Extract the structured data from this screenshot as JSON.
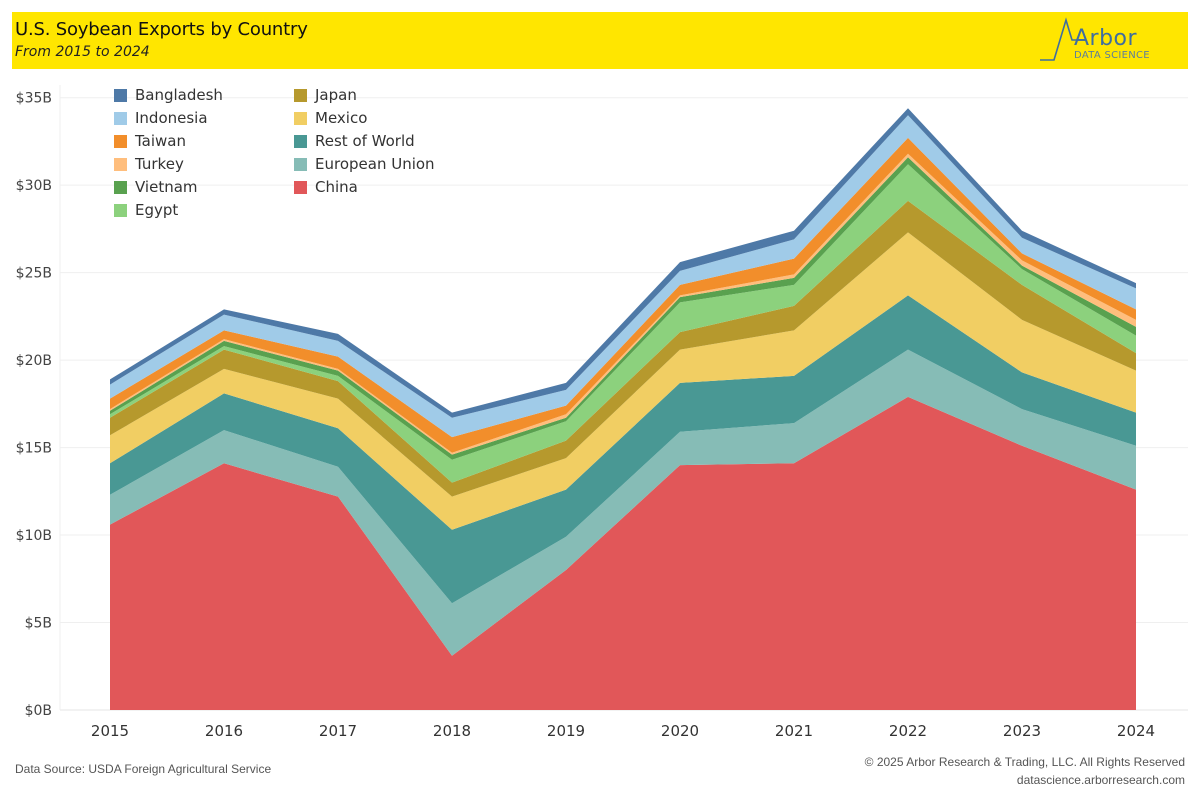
{
  "header": {
    "title": "U.S. Soybean Exports by Country",
    "subtitle": "From 2015 to 2024",
    "logo_word": "Arbor",
    "logo_sub": "DATA SCIENCE",
    "banner_color": "#ffe600"
  },
  "footer": {
    "source": "Data Source: USDA Foreign Agricultural Service",
    "copyright": "© 2025 Arbor Research & Trading, LLC. All Rights Reserved",
    "website": "datascience.arborresearch.com"
  },
  "chart_data": {
    "type": "area",
    "stacked": true,
    "title": "U.S. Soybean Exports by Country",
    "subtitle": "From 2015 to 2024",
    "xlabel": "",
    "ylabel": "",
    "units": "USD billions",
    "x": [
      "2015",
      "2016",
      "2017",
      "2018",
      "2019",
      "2020",
      "2021",
      "2022",
      "2023",
      "2024"
    ],
    "ylim": [
      0,
      35
    ],
    "yticks": [
      0,
      5,
      10,
      15,
      20,
      25,
      30,
      35
    ],
    "ytick_labels": [
      "$0B",
      "$5B",
      "$10B",
      "$15B",
      "$20B",
      "$25B",
      "$30B",
      "$35B"
    ],
    "grid": true,
    "legend_position": "top-left",
    "legend_order": [
      "Bangladesh",
      "Indonesia",
      "Taiwan",
      "Turkey",
      "Vietnam",
      "Egypt",
      "Japan",
      "Mexico",
      "Rest of World",
      "European Union",
      "China"
    ],
    "series": [
      {
        "name": "China",
        "color": "#e15759",
        "values": [
          10.6,
          14.1,
          12.2,
          3.1,
          8.0,
          14.0,
          14.1,
          17.9,
          15.1,
          12.6
        ]
      },
      {
        "name": "European Union",
        "color": "#86bcb6",
        "values": [
          1.7,
          1.9,
          1.7,
          3.0,
          1.9,
          1.9,
          2.3,
          2.7,
          2.1,
          2.5
        ]
      },
      {
        "name": "Rest of World",
        "color": "#499894",
        "values": [
          1.8,
          2.1,
          2.2,
          4.2,
          2.7,
          2.8,
          2.7,
          3.1,
          2.1,
          1.9
        ]
      },
      {
        "name": "Mexico",
        "color": "#f1ce63",
        "values": [
          1.6,
          1.4,
          1.7,
          1.9,
          1.8,
          1.9,
          2.6,
          3.6,
          3.0,
          2.4
        ]
      },
      {
        "name": "Japan",
        "color": "#b6992d",
        "values": [
          1.0,
          1.1,
          1.0,
          0.8,
          1.0,
          1.0,
          1.4,
          1.8,
          2.0,
          1.0
        ]
      },
      {
        "name": "Egypt",
        "color": "#8cd17d",
        "values": [
          0.2,
          0.2,
          0.3,
          1.3,
          1.1,
          1.7,
          1.2,
          2.1,
          0.9,
          1.0
        ]
      },
      {
        "name": "Vietnam",
        "color": "#59a14f",
        "values": [
          0.2,
          0.3,
          0.3,
          0.3,
          0.2,
          0.3,
          0.4,
          0.4,
          0.2,
          0.5
        ]
      },
      {
        "name": "Turkey",
        "color": "#ffbe7d",
        "values": [
          0.1,
          0.1,
          0.1,
          0.1,
          0.2,
          0.1,
          0.2,
          0.2,
          0.3,
          0.4
        ]
      },
      {
        "name": "Taiwan",
        "color": "#f28e2b",
        "values": [
          0.6,
          0.5,
          0.7,
          0.9,
          0.5,
          0.6,
          0.9,
          0.9,
          0.4,
          0.6
        ]
      },
      {
        "name": "Indonesia",
        "color": "#a0cbe8",
        "values": [
          0.8,
          0.9,
          0.9,
          1.1,
          0.9,
          0.8,
          1.1,
          1.3,
          0.9,
          1.2
        ]
      },
      {
        "name": "Bangladesh",
        "color": "#4e79a7",
        "values": [
          0.3,
          0.3,
          0.4,
          0.3,
          0.4,
          0.5,
          0.5,
          0.4,
          0.4,
          0.3
        ]
      }
    ]
  }
}
